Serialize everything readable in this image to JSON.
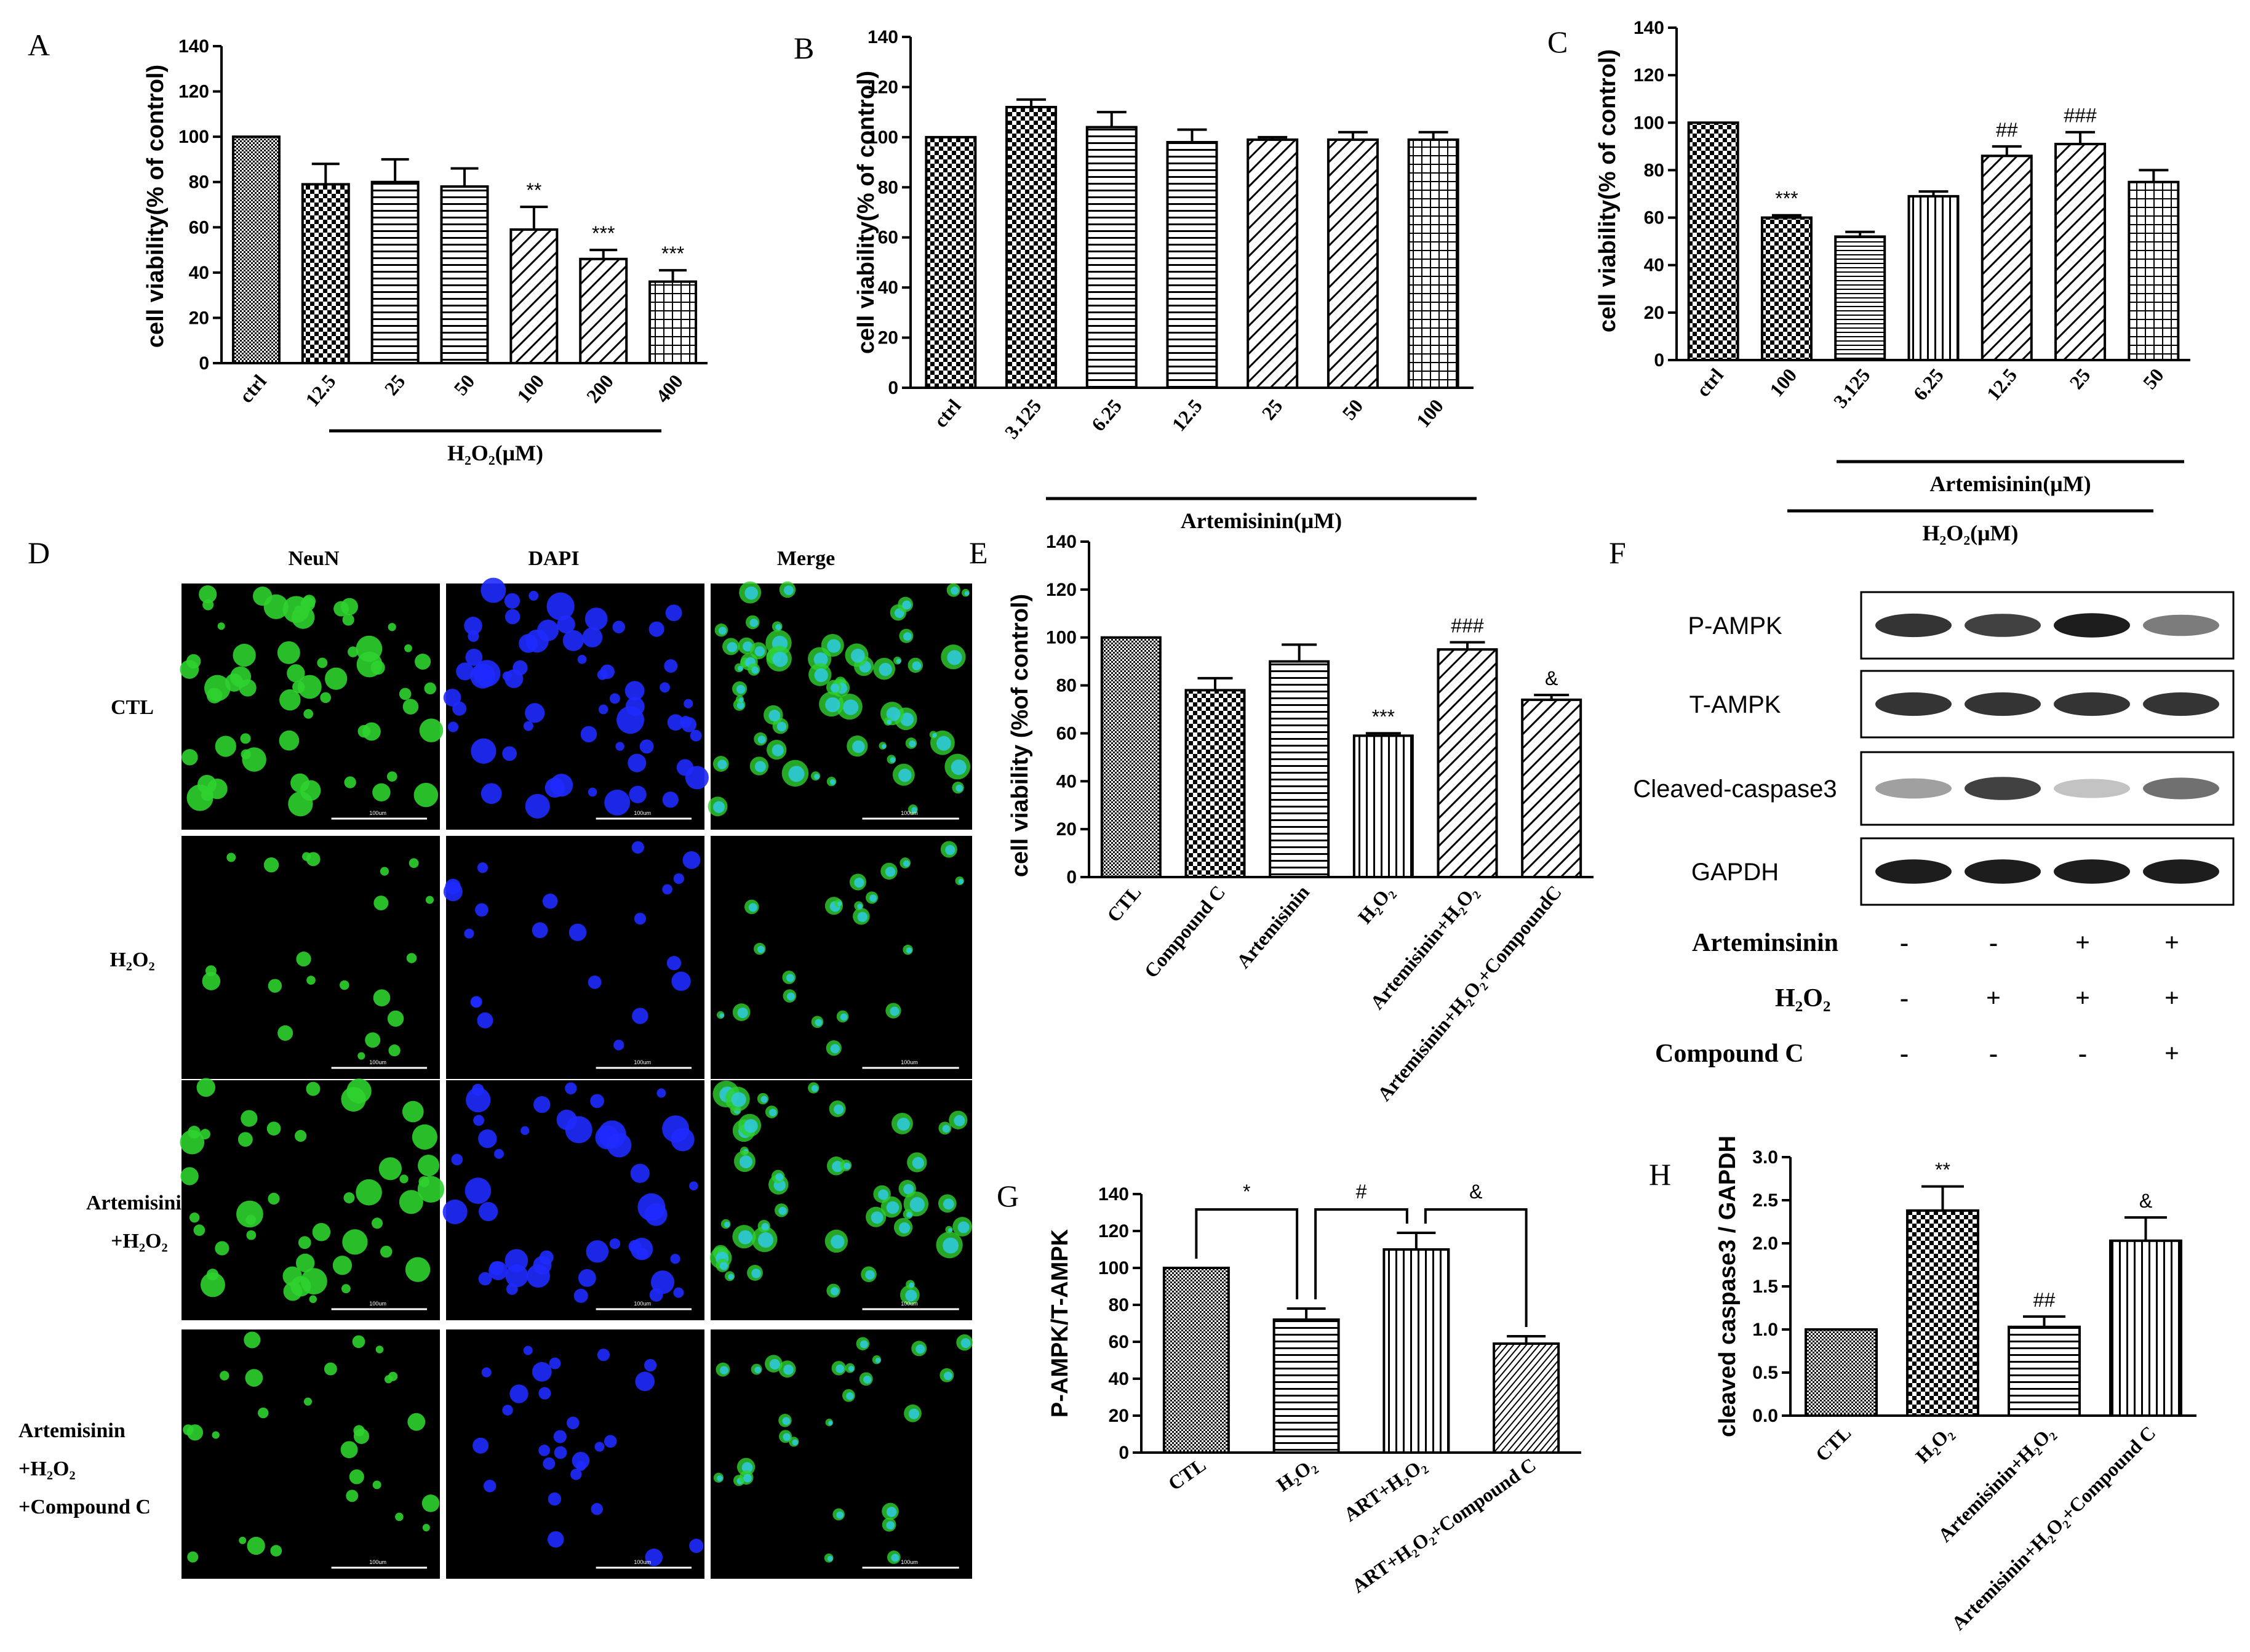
{
  "chart_data": [
    {
      "id": "A",
      "type": "bar",
      "panel_label": "A",
      "ylabel": "cell viability(% of control)",
      "ylim": [
        0,
        140
      ],
      "yticks": [
        0,
        20,
        40,
        60,
        80,
        100,
        120,
        140
      ],
      "categories": [
        "ctrl",
        "12.5",
        "25",
        "50",
        "100",
        "200",
        "400"
      ],
      "values": [
        100,
        79,
        80,
        78,
        59,
        46,
        36
      ],
      "errors": [
        0,
        9,
        10,
        8,
        10,
        4,
        5
      ],
      "significance": [
        "",
        "",
        "",
        "",
        "**",
        "***",
        "***"
      ],
      "group_label": "H₂O₂(μM)"
    },
    {
      "id": "B",
      "type": "bar",
      "panel_label": "B",
      "ylabel": "cell viability(% of control)",
      "ylim": [
        0,
        140
      ],
      "yticks": [
        0,
        20,
        40,
        60,
        80,
        100,
        120,
        140
      ],
      "categories": [
        "ctrl",
        "3.125",
        "6.25",
        "12.5",
        "25",
        "50",
        "100"
      ],
      "values": [
        100,
        112,
        104,
        98,
        99,
        99,
        99
      ],
      "errors": [
        0,
        3,
        6,
        5,
        1,
        3,
        3
      ],
      "significance": [
        "",
        "",
        "",
        "",
        "",
        "",
        ""
      ],
      "group_label": "Artemisinin(μM)"
    },
    {
      "id": "C",
      "type": "bar",
      "panel_label": "C",
      "ylabel": "cell viability(% of control)",
      "ylim": [
        0,
        140
      ],
      "yticks": [
        0,
        20,
        40,
        60,
        80,
        100,
        120,
        140
      ],
      "categories": [
        "ctrl",
        "100",
        "3.125",
        "6.25",
        "12.5",
        "25",
        "50"
      ],
      "values": [
        100,
        60,
        52,
        69,
        86,
        91,
        75
      ],
      "errors": [
        0,
        1,
        2,
        2,
        4,
        5,
        5
      ],
      "significance": [
        "",
        "***",
        "",
        "",
        "##",
        "###",
        ""
      ],
      "group_label": "Artemisinin(μM)",
      "group_label_2": "H₂O₂(μM)"
    },
    {
      "id": "E",
      "type": "bar",
      "panel_label": "E",
      "ylabel": "cell viability  (%of control)",
      "ylim": [
        0,
        140
      ],
      "yticks": [
        0,
        20,
        40,
        60,
        80,
        100,
        120,
        140
      ],
      "categories": [
        "CTL",
        "Compound C",
        "Artemisinin",
        "H₂O₂",
        "Artemisinin+H₂O₂",
        "Artemisinin+H₂O₂+CompoundC"
      ],
      "values": [
        100,
        78,
        90,
        59,
        95,
        74
      ],
      "errors": [
        0,
        5,
        7,
        1,
        3,
        2
      ],
      "significance": [
        "",
        "",
        "",
        "***",
        "###",
        "&"
      ]
    },
    {
      "id": "G",
      "type": "bar",
      "panel_label": "G",
      "ylabel": "P-AMPK/T-AMPK",
      "ylim": [
        0,
        140
      ],
      "yticks": [
        0,
        20,
        40,
        60,
        80,
        100,
        120,
        140
      ],
      "categories": [
        "CTL",
        "H₂O₂",
        "ART+H₂O₂",
        "ART+H₂O₂+Compound C"
      ],
      "values": [
        100,
        72,
        110,
        59
      ],
      "errors": [
        0,
        6,
        9,
        4
      ],
      "brackets": [
        {
          "from": 0,
          "to": 1,
          "label": "*"
        },
        {
          "from": 1,
          "to": 2,
          "label": "#"
        },
        {
          "from": 2,
          "to": 3,
          "label": "&"
        }
      ]
    },
    {
      "id": "H",
      "type": "bar",
      "panel_label": "H",
      "ylabel": "cleaved caspase3 / GAPDH",
      "ylim": [
        0,
        3.0
      ],
      "yticks": [
        "0.0",
        "0.5",
        "1.0",
        "1.5",
        "2.0",
        "2.5",
        "3.0"
      ],
      "categories": [
        "CTL",
        "H₂O₂",
        "Artemisinin+H₂O₂",
        "Artemisinin+H₂O₂+Compound C"
      ],
      "values": [
        1.0,
        2.38,
        1.03,
        2.03
      ],
      "errors": [
        0,
        0.28,
        0.12,
        0.27
      ],
      "significance": [
        "",
        "**",
        "##",
        "&"
      ]
    }
  ],
  "panel_d": {
    "panel_label": "D",
    "columns": [
      "NeuN",
      "DAPI",
      "Merge"
    ],
    "rows": [
      "CTL",
      "H₂O₂",
      "Artemisinin\n+H₂O₂",
      "Artemisinin\n+H₂O₂\n+Compound C"
    ],
    "scale_bar": "100um"
  },
  "panel_f": {
    "panel_label": "F",
    "bands": [
      "P-AMPK",
      "T-AMPK",
      "Cleaved-caspase3",
      "GAPDH"
    ],
    "conditions": [
      {
        "label": "Arteminsinin",
        "values": [
          "-",
          "-",
          "+",
          "+"
        ]
      },
      {
        "label": "H₂O₂",
        "values": [
          "-",
          "+",
          "+",
          "+"
        ]
      },
      {
        "label": "Compound C",
        "values": [
          "-",
          "-",
          "-",
          "+"
        ]
      }
    ]
  }
}
